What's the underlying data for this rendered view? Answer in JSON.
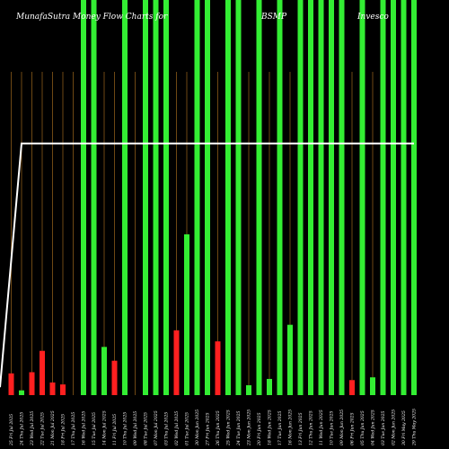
{
  "chart_data": {
    "type": "bar",
    "title_left": "MunafaSutra  Money Flow  Charts for",
    "title_ticker": "BSMP",
    "title_right": "Invesco",
    "grid_color": "#8b5a1a",
    "colors": {
      "background": "#000000",
      "up": "#33ee33",
      "down": "#ff2020",
      "line": "#ffffff"
    },
    "categories": [
      "25 Fri Jul 2025",
      "24 Thu Jul 2025",
      "23 Wed Jul 2025",
      "22 Tue Jul 2025",
      "21 Mon Jul 2025",
      "18 Fri Jul 2025",
      "17 Thu Jul 2025",
      "16 Wed Jul 2025",
      "15 Tue Jul 2025",
      "14 Mon Jul 2025",
      "11 Fri Jul 2025",
      "10 Thu Jul 2025",
      "09 Wed Jul 2025",
      "08 Tue Jul 2025",
      "07 Mon Jul 2025",
      "03 Thu Jul 2025",
      "02 Wed Jul 2025",
      "01 Tue Jul 2025",
      "30 Mon Jun 2025",
      "27 Fri Jun 2025",
      "26 Thu Jun 2025",
      "25 Wed Jun 2025",
      "24 Tue Jun 2025",
      "23 Mon Jun 2025",
      "20 Fri Jun 2025",
      "18 Wed Jun 2025",
      "17 Tue Jun 2025",
      "16 Mon Jun 2025",
      "13 Fri Jun 2025",
      "12 Thu Jun 2025",
      "11 Wed Jun 2025",
      "10 Tue Jun 2025",
      "09 Mon Jun 2025",
      "06 Fri Jun 2025",
      "05 Thu Jun 2025",
      "04 Wed Jun 2025",
      "03 Tue Jun 2025",
      "02 Mon Jun 2025",
      "30 Fri May 2025",
      "29 Thu May 2025"
    ],
    "values": [
      0.055,
      0.012,
      0.058,
      0.112,
      0.032,
      0.027,
      0,
      1,
      1,
      0.122,
      0.087,
      1,
      0,
      1,
      1,
      1,
      0.164,
      0.407,
      1,
      1,
      0.136,
      1,
      1,
      0.025,
      1,
      0.041,
      1,
      0.178,
      1,
      1,
      1,
      1,
      1,
      0.038,
      1,
      0.045,
      1,
      1,
      1,
      1
    ],
    "directions": [
      "down",
      "up",
      "down",
      "down",
      "down",
      "down",
      "up",
      "up",
      "up",
      "up",
      "down",
      "up",
      "up",
      "up",
      "up",
      "up",
      "down",
      "up",
      "up",
      "up",
      "down",
      "up",
      "up",
      "up",
      "up",
      "up",
      "up",
      "up",
      "up",
      "up",
      "up",
      "up",
      "up",
      "down",
      "up",
      "up",
      "up",
      "up",
      "up",
      "up"
    ],
    "line_values": [
      0.02,
      0.637,
      0.637,
      0.637,
      0.637,
      0.637,
      0.637,
      0.637,
      0.637,
      0.637,
      0.637,
      0.637,
      0.637,
      0.637,
      0.637,
      0.637,
      0.637,
      0.637,
      0.637,
      0.637,
      0.637,
      0.637,
      0.637,
      0.637,
      0.637,
      0.637,
      0.637,
      0.637,
      0.637,
      0.637,
      0.637,
      0.637,
      0.637,
      0.637,
      0.637,
      0.637,
      0.637,
      0.637,
      0.637,
      0.637
    ],
    "ylim": [
      0,
      1
    ]
  }
}
